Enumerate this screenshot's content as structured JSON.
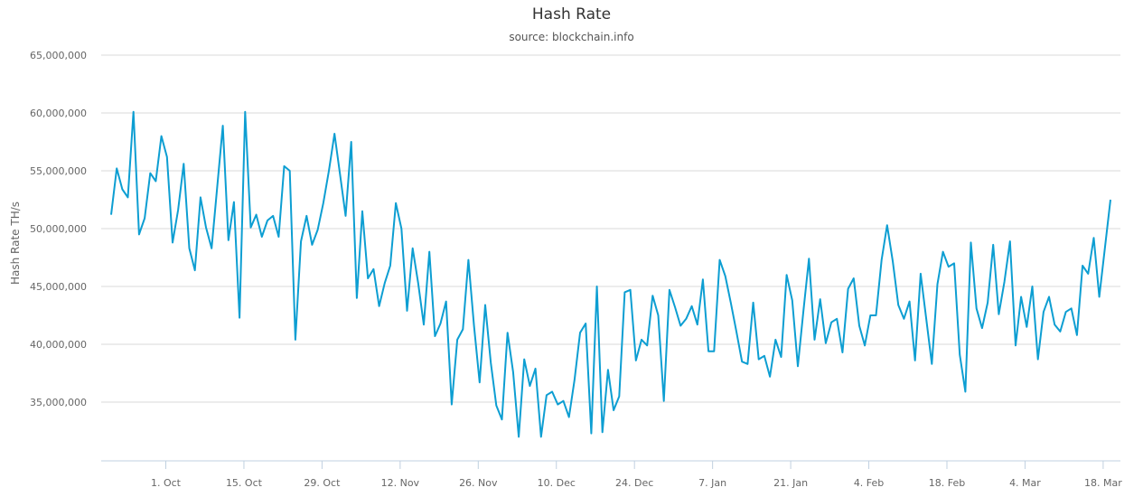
{
  "chart_data": {
    "type": "line",
    "title": "Hash Rate",
    "subtitle": "source: blockchain.info",
    "xlabel": "",
    "ylabel": "Hash Rate TH/s",
    "ylim": [
      30000000,
      65000000
    ],
    "grid": true,
    "legend": null,
    "series_color": "#0d9ed2",
    "y_ticks": [
      "35,000,000",
      "40,000,000",
      "45,000,000",
      "50,000,000",
      "55,000,000",
      "60,000,000",
      "65,000,000"
    ],
    "x_ticks": [
      "1. Oct",
      "15. Oct",
      "29. Oct",
      "12. Nov",
      "26. Nov",
      "10. Dec",
      "24. Dec",
      "7. Jan",
      "21. Jan",
      "4. Feb",
      "18. Feb",
      "4. Mar",
      "18. Mar"
    ],
    "series": [
      {
        "name": "Hash Rate",
        "x_start": "21 Sep",
        "x_step_days": 1,
        "values": [
          51.2,
          55.2,
          53.4,
          52.7,
          60.1,
          49.5,
          50.9,
          54.8,
          54.1,
          58.0,
          56.2,
          48.8,
          51.6,
          55.6,
          48.3,
          46.4,
          52.7,
          50.1,
          48.3,
          53.6,
          58.9,
          49.0,
          52.3,
          42.3,
          60.1,
          50.1,
          51.2,
          49.3,
          50.7,
          51.1,
          49.3,
          55.4,
          55.0,
          40.4,
          48.9,
          51.1,
          48.6,
          49.9,
          52.2,
          55.0,
          58.2,
          54.7,
          51.1,
          57.5,
          44.0,
          51.5,
          45.7,
          46.5,
          43.3,
          45.3,
          46.8,
          52.2,
          50.0,
          42.9,
          48.3,
          45.3,
          41.7,
          48.0,
          40.7,
          41.8,
          43.7,
          34.8,
          40.4,
          41.3,
          47.3,
          41.6,
          36.7,
          43.4,
          38.4,
          34.7,
          33.5,
          41.0,
          37.6,
          32.0,
          38.7,
          36.4,
          37.9,
          32.0,
          35.6,
          35.9,
          34.8,
          35.1,
          33.7,
          36.9,
          41.0,
          41.8,
          32.3,
          45.0,
          32.4,
          37.8,
          34.3,
          35.5,
          44.5,
          44.7,
          38.6,
          40.4,
          39.9,
          44.2,
          42.5,
          35.1,
          44.7,
          43.2,
          41.6,
          42.2,
          43.3,
          41.7,
          45.6,
          39.4,
          39.4,
          47.3,
          45.9,
          43.6,
          41.1,
          38.5,
          38.3,
          43.6,
          38.7,
          39.0,
          37.2,
          40.4,
          38.9,
          46.0,
          43.8,
          38.1,
          42.9,
          47.4,
          40.4,
          43.9,
          40.1,
          41.9,
          42.2,
          39.3,
          44.8,
          45.7,
          41.6,
          39.9,
          42.5,
          42.5,
          47.3,
          50.3,
          47.2,
          43.4,
          42.2,
          43.7,
          38.6,
          46.1,
          42.2,
          38.3,
          45.2,
          48.0,
          46.7,
          47.0,
          39.1,
          35.9,
          48.8,
          43.1,
          41.4,
          43.6,
          48.6,
          42.6,
          45.4,
          48.9,
          39.9,
          44.1,
          41.5,
          45.0,
          38.7,
          42.8,
          44.1,
          41.7,
          41.1,
          42.8,
          43.1,
          40.8,
          46.8,
          46.1,
          49.2,
          44.1,
          48.3,
          52.5
        ]
      }
    ]
  }
}
